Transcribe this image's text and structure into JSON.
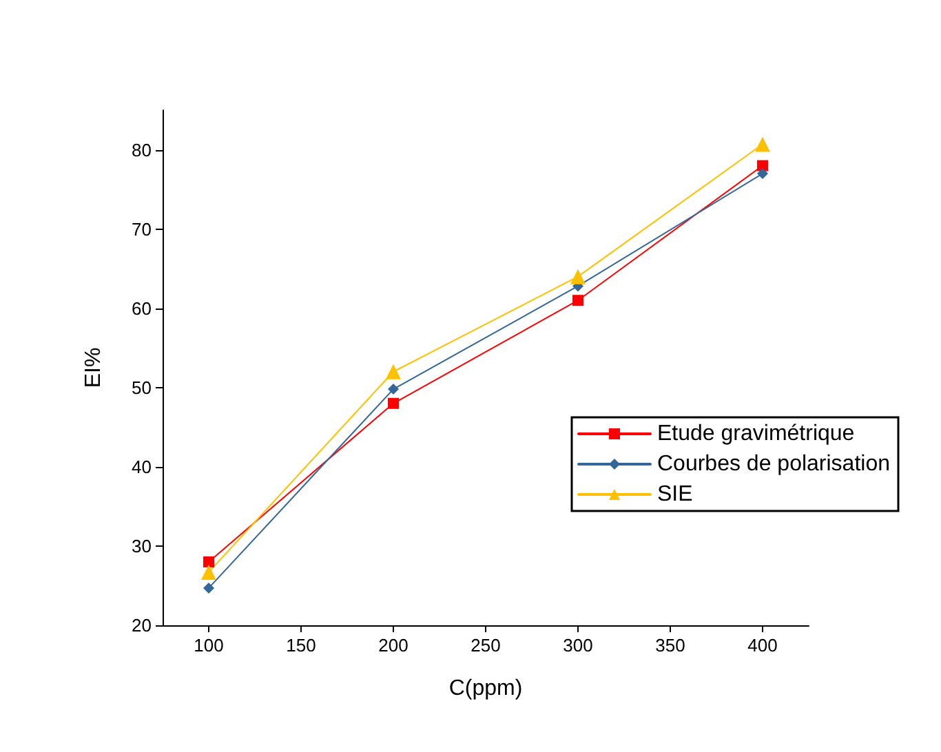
{
  "chart_data": {
    "type": "line",
    "xlabel": "C(ppm)",
    "ylabel": "EI%",
    "x": [
      100,
      200,
      300,
      400
    ],
    "series": [
      {
        "name": "Etude gravimétrique",
        "color": "#ff0000",
        "marker": "square",
        "values": [
          28,
          48,
          61,
          78
        ]
      },
      {
        "name": "Courbes de polarisation",
        "color": "#336699",
        "marker": "diamond",
        "values": [
          24.7,
          49.8,
          62.8,
          77
        ]
      },
      {
        "name": "SIE",
        "color": "#ffc000",
        "marker": "triangle",
        "values": [
          26.7,
          52,
          64,
          80.7
        ]
      }
    ],
    "xlim": [
      75,
      425
    ],
    "xticks": [
      100,
      150,
      200,
      250,
      300,
      350,
      400
    ],
    "ylim": [
      20,
      85
    ],
    "yticks": [
      20,
      30,
      40,
      50,
      60,
      70,
      80
    ],
    "grid": false,
    "legend": "center right",
    "line_style": "solid"
  }
}
